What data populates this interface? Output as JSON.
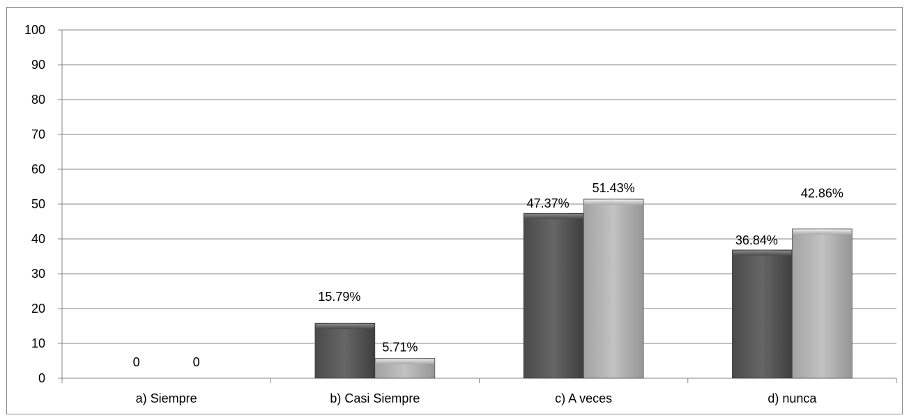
{
  "chart_data": {
    "type": "bar",
    "categories": [
      "a) Siempre",
      "b) Casi Siempre",
      "c) A veces",
      "d) nunca"
    ],
    "series": [
      {
        "values": [
          0,
          15.79,
          47.37,
          36.84
        ],
        "labels": [
          "0",
          "15.79%",
          "47.37%",
          "36.84%"
        ],
        "color": "#5a5a5a"
      },
      {
        "values": [
          0,
          5.71,
          51.43,
          42.86
        ],
        "labels": [
          "0",
          "5.71%",
          "51.43%",
          "42.86%"
        ],
        "color": "#b4b4b4"
      }
    ],
    "ylim": [
      0,
      100
    ],
    "yticks": [
      0,
      10,
      20,
      30,
      40,
      50,
      60,
      70,
      80,
      90,
      100
    ],
    "grid": true,
    "title": "",
    "xlabel": "",
    "ylabel": ""
  }
}
